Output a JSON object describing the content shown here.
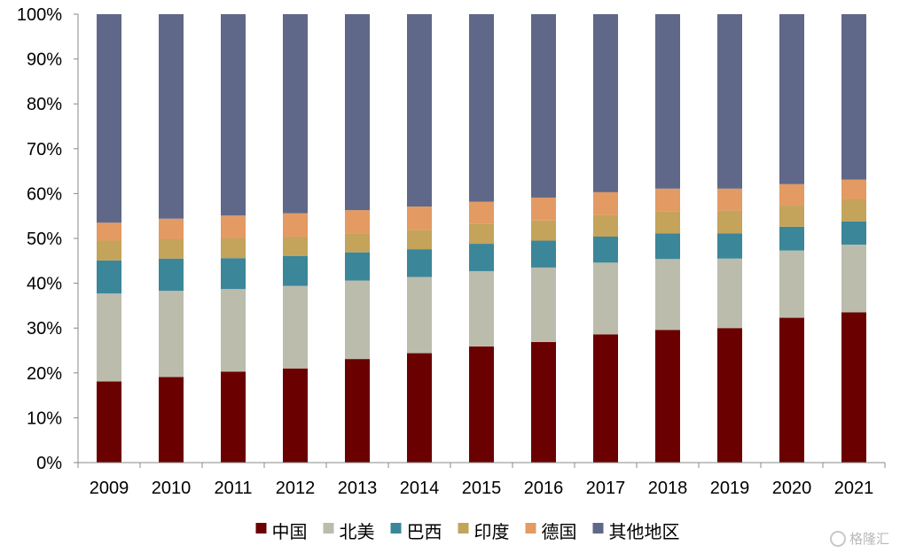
{
  "chart_data": {
    "type": "bar",
    "stacked": true,
    "percent": true,
    "categories": [
      "2009",
      "2010",
      "2011",
      "2012",
      "2013",
      "2014",
      "2015",
      "2016",
      "2017",
      "2018",
      "2019",
      "2020",
      "2021"
    ],
    "series": [
      {
        "name": "中国",
        "color": "#6b0000",
        "values": [
          18.1,
          19.1,
          20.3,
          21.0,
          23.1,
          24.4,
          25.9,
          26.9,
          28.6,
          29.6,
          30.0,
          32.3,
          33.5
        ]
      },
      {
        "name": "北美",
        "color": "#bcbcac",
        "values": [
          19.6,
          19.2,
          18.4,
          18.4,
          17.5,
          17.0,
          16.8,
          16.6,
          16.0,
          15.8,
          15.5,
          15.0,
          15.1
        ]
      },
      {
        "name": "巴西",
        "color": "#3b8699",
        "values": [
          7.4,
          7.2,
          6.9,
          6.7,
          6.3,
          6.2,
          6.1,
          6.0,
          5.8,
          5.7,
          5.6,
          5.3,
          5.2
        ]
      },
      {
        "name": "印度",
        "color": "#c4a35a",
        "values": [
          4.4,
          4.3,
          4.4,
          4.2,
          4.1,
          4.2,
          4.4,
          4.5,
          4.8,
          4.9,
          5.1,
          4.7,
          4.9
        ]
      },
      {
        "name": "德国",
        "color": "#e39a63",
        "values": [
          4.0,
          4.6,
          5.1,
          5.3,
          5.3,
          5.3,
          5.0,
          5.1,
          5.1,
          5.1,
          4.9,
          4.8,
          4.4
        ]
      },
      {
        "name": "其他地区",
        "color": "#5f6888",
        "values": [
          46.5,
          45.6,
          44.9,
          44.4,
          43.7,
          42.9,
          41.8,
          40.9,
          39.7,
          38.9,
          38.9,
          37.9,
          36.9
        ]
      }
    ],
    "ylim": [
      0,
      100
    ],
    "yticks": [
      "0%",
      "10%",
      "20%",
      "30%",
      "40%",
      "50%",
      "60%",
      "70%",
      "80%",
      "90%",
      "100%"
    ],
    "grid": false,
    "legend_position": "bottom"
  },
  "watermark": {
    "text": "格隆汇"
  }
}
